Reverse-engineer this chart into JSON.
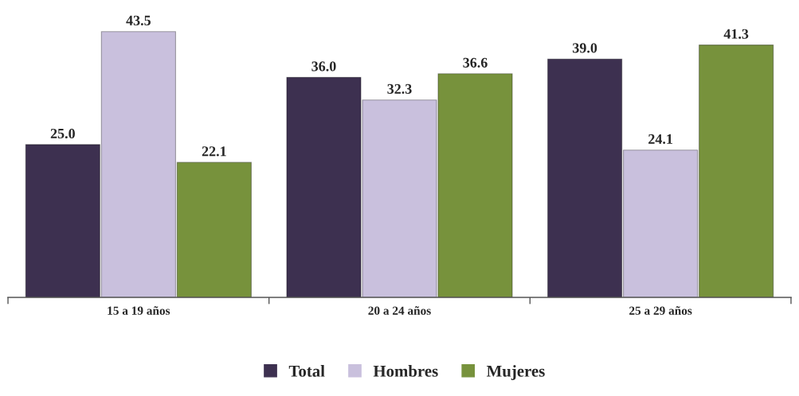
{
  "chart_data": {
    "type": "bar",
    "tick_labels": "x",
    "legend": "bottom",
    "grid": false,
    "categories": [
      "15 a 19 años",
      "20 a 24 años",
      "25 a 29 años"
    ],
    "series": [
      {
        "name": "Total",
        "color": "#3d3050",
        "values": [
          25.0,
          36.0,
          39.0
        ],
        "value_labels": [
          "25.0",
          "36.0",
          "39.0"
        ]
      },
      {
        "name": "Hombres",
        "color": "#c9c0dd",
        "values": [
          43.5,
          32.3,
          24.1
        ],
        "value_labels": [
          "43.5",
          "32.3",
          "24.1"
        ]
      },
      {
        "name": "Mujeres",
        "color": "#77923c",
        "values": [
          22.1,
          36.6,
          41.3
        ],
        "value_labels": [
          "22.1",
          "36.6",
          "41.3"
        ]
      }
    ]
  }
}
